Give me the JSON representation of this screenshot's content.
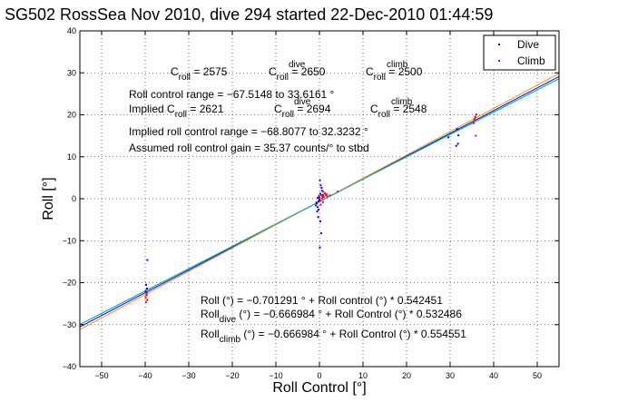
{
  "chart_data": {
    "type": "scatter",
    "title": "SG502 RossSea Nov 2010, dive 294 started 22-Dec-2010 01:44:59",
    "xlabel": "Roll Control [°]",
    "ylabel": "Roll [°]",
    "xlim": [
      -55,
      55
    ],
    "ylim": [
      -40,
      40
    ],
    "xticks": [
      -50,
      -40,
      -30,
      -20,
      -10,
      0,
      10,
      20,
      30,
      40,
      50
    ],
    "yticks": [
      -40,
      -30,
      -20,
      -10,
      0,
      10,
      20,
      30,
      40
    ],
    "grid": true,
    "legend_position": "top-right",
    "legend": [
      {
        "label": "Dive",
        "color": "#0000ff"
      },
      {
        "label": "Climb",
        "color": "#ff0000"
      }
    ],
    "series": [
      {
        "name": "Dive",
        "color": "#0000ff",
        "points": [
          [
            -39.8,
            -20.5
          ],
          [
            -39.6,
            -21.4
          ],
          [
            -39.9,
            -22.0
          ],
          [
            -39.5,
            -14.6
          ],
          [
            -39.7,
            -22.8
          ],
          [
            -0.6,
            -1.1
          ],
          [
            -0.4,
            -2.0
          ],
          [
            -0.2,
            -0.6
          ],
          [
            -0.8,
            -1.6
          ],
          [
            -0.5,
            -3.0
          ],
          [
            0.1,
            4.4
          ],
          [
            0.3,
            3.2
          ],
          [
            0.2,
            1.2
          ],
          [
            -0.1,
            0.6
          ],
          [
            0.4,
            -8.2
          ],
          [
            0.1,
            -11.6
          ],
          [
            -0.3,
            -4.4
          ],
          [
            0.6,
            1.9
          ],
          [
            0.0,
            -0.2
          ],
          [
            -0.7,
            -0.9
          ],
          [
            0.5,
            2.6
          ],
          [
            -0.2,
            -2.6
          ],
          [
            0.8,
            0.9
          ],
          [
            -0.4,
            0.2
          ],
          [
            0.2,
            -5.4
          ],
          [
            31.6,
            16.6
          ],
          [
            31.8,
            13.1
          ],
          [
            31.4,
            12.6
          ],
          [
            31.9,
            15.1
          ],
          [
            29.6,
            14.6
          ]
        ]
      },
      {
        "name": "Climb",
        "color": "#ff0000",
        "points": [
          [
            -39.7,
            -23.0
          ],
          [
            -39.5,
            -24.1
          ],
          [
            -39.9,
            -23.6
          ],
          [
            -39.6,
            -22.3
          ],
          [
            -39.8,
            -24.6
          ],
          [
            0.2,
            -0.4
          ],
          [
            0.6,
            0.1
          ],
          [
            1.0,
            0.4
          ],
          [
            1.4,
            0.8
          ],
          [
            0.8,
            -0.8
          ],
          [
            0.4,
            0.9
          ],
          [
            1.2,
            1.3
          ],
          [
            0.0,
            0.3
          ],
          [
            1.8,
            0.6
          ],
          [
            0.9,
            1.7
          ],
          [
            0.3,
            -1.4
          ],
          [
            1.6,
            1.1
          ],
          [
            2.4,
            0.8
          ],
          [
            0.7,
            0.5
          ],
          [
            4.2,
            1.7
          ],
          [
            35.8,
            19.6
          ],
          [
            35.6,
            18.8
          ],
          [
            36.0,
            20.1
          ],
          [
            35.4,
            18.0
          ],
          [
            35.9,
            15.0
          ],
          [
            35.7,
            19.2
          ]
        ]
      }
    ],
    "fits": [
      {
        "color": "#0000ff",
        "intercept": -0.701291,
        "slope": 0.542451
      },
      {
        "color": "#00aa00",
        "intercept": -0.666984,
        "slope": 0.532486
      },
      {
        "color": "#ff8c00",
        "intercept": -0.666984,
        "slope": 0.554551
      },
      {
        "color": "#00bbcc",
        "intercept": -0.701291,
        "slope": 0.532486
      }
    ],
    "annotations": {
      "line1": {
        "c1": "C",
        "s1": "roll",
        "m1": " = 2575",
        "c2": "C",
        "p2": "dive",
        "s2": "roll",
        "m2": " = 2650",
        "c3": "C",
        "p3": "climb",
        "s3": "roll",
        "m3": " = 2500"
      },
      "range": "Roll control range = −67.5148 to 33.6161 °",
      "implied": {
        "a": "Implied C",
        "s1": "roll",
        "b": " = 2621",
        "c2": "C",
        "p2": "dive",
        "s2": "roll",
        "m2": " = 2694",
        "c3": "C",
        "p3": "climb",
        "s3": "roll",
        "m3": " = 2548"
      },
      "implied_range": "Implied roll control range = −68.8077 to 32.3232 °",
      "gain": "Assumed roll control gain = 35.37 counts/° to stbd",
      "eq1": "Roll (°) = −0.701291 ° + Roll control (°) * 0.542451",
      "eq2": {
        "a": "Roll",
        "sub": "dive",
        "b": " (°) = −0.666984 ° + Roll Control (°) * 0.532486"
      },
      "eq3": {
        "a": "Roll",
        "sub": "climb",
        "b": " (°) = −0.666984 ° + Roll Control (°) * 0.554551"
      }
    }
  }
}
